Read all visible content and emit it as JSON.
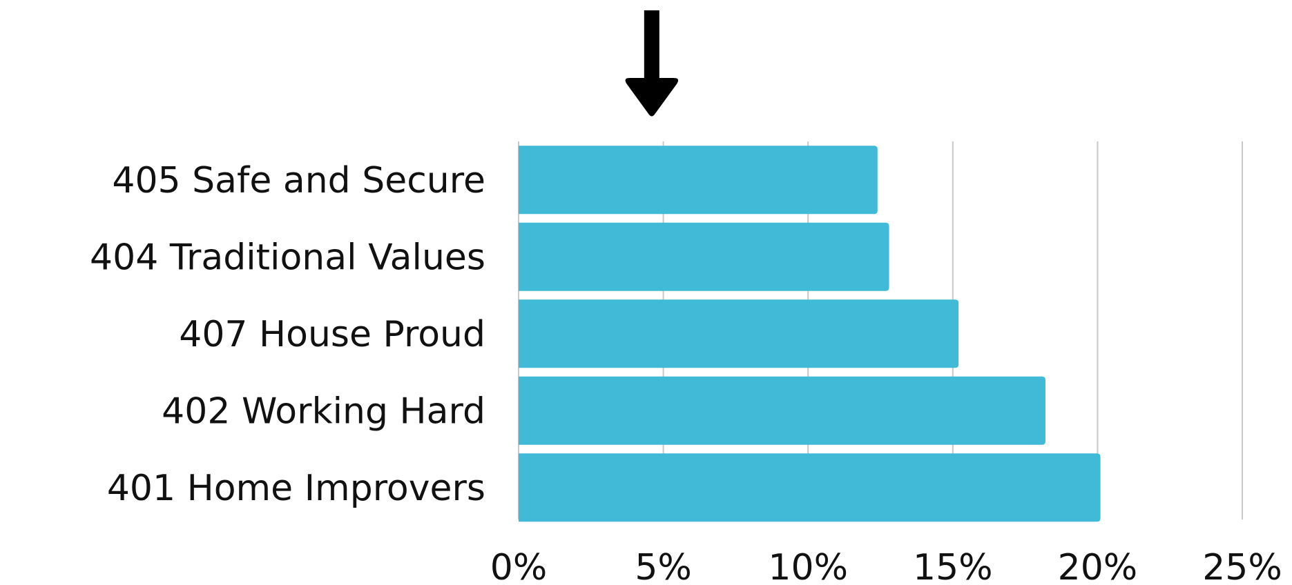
{
  "chart_data": {
    "type": "bar",
    "orientation": "horizontal",
    "categories": [
      "405 Safe and Secure",
      "404 Traditional Values",
      "407 House Proud",
      "402 Working Hard",
      "401 Home Improvers"
    ],
    "values": [
      12.4,
      12.8,
      15.2,
      18.2,
      20.1
    ],
    "xlim": [
      0,
      25
    ],
    "x_ticks": [
      0,
      5,
      10,
      15,
      20,
      25
    ],
    "x_tick_labels": [
      "0%",
      "5%",
      "10%",
      "15%",
      "20%",
      "25%"
    ],
    "title": "",
    "xlabel": "",
    "ylabel": "",
    "grid": "vertical",
    "legend": "none",
    "bar_color": "#41BAD8",
    "grid_color": "#c8c8c8",
    "annotation": {
      "type": "arrow-down",
      "x_value": 4.6,
      "color": "#000000"
    }
  }
}
